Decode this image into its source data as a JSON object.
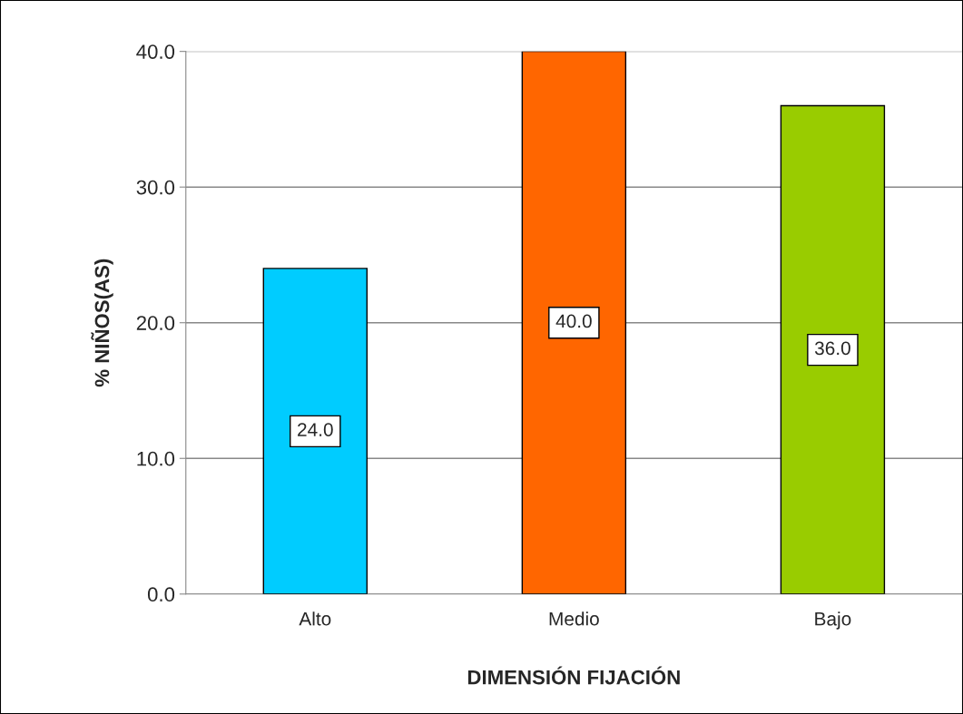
{
  "chart_data": {
    "type": "bar",
    "xlabel": "DIMENSIÓN FIJACIÓN",
    "ylabel": "% NIÑOS(AS)",
    "categories": [
      "Alto",
      "Medio",
      "Bajo"
    ],
    "values": [
      24.0,
      40.0,
      36.0
    ],
    "colors": [
      "#00ccff",
      "#ff6600",
      "#99cc00"
    ],
    "value_labels": [
      "24.0",
      "40.0",
      "36.0"
    ],
    "ylim": [
      0,
      40
    ],
    "yticks": [
      {
        "value": 0,
        "label": "0.0"
      },
      {
        "value": 10,
        "label": "10.0"
      },
      {
        "value": 20,
        "label": "20.0"
      },
      {
        "value": 30,
        "label": "30.0"
      },
      {
        "value": 40,
        "label": "40.0"
      }
    ],
    "grid": "y",
    "legend": false
  }
}
